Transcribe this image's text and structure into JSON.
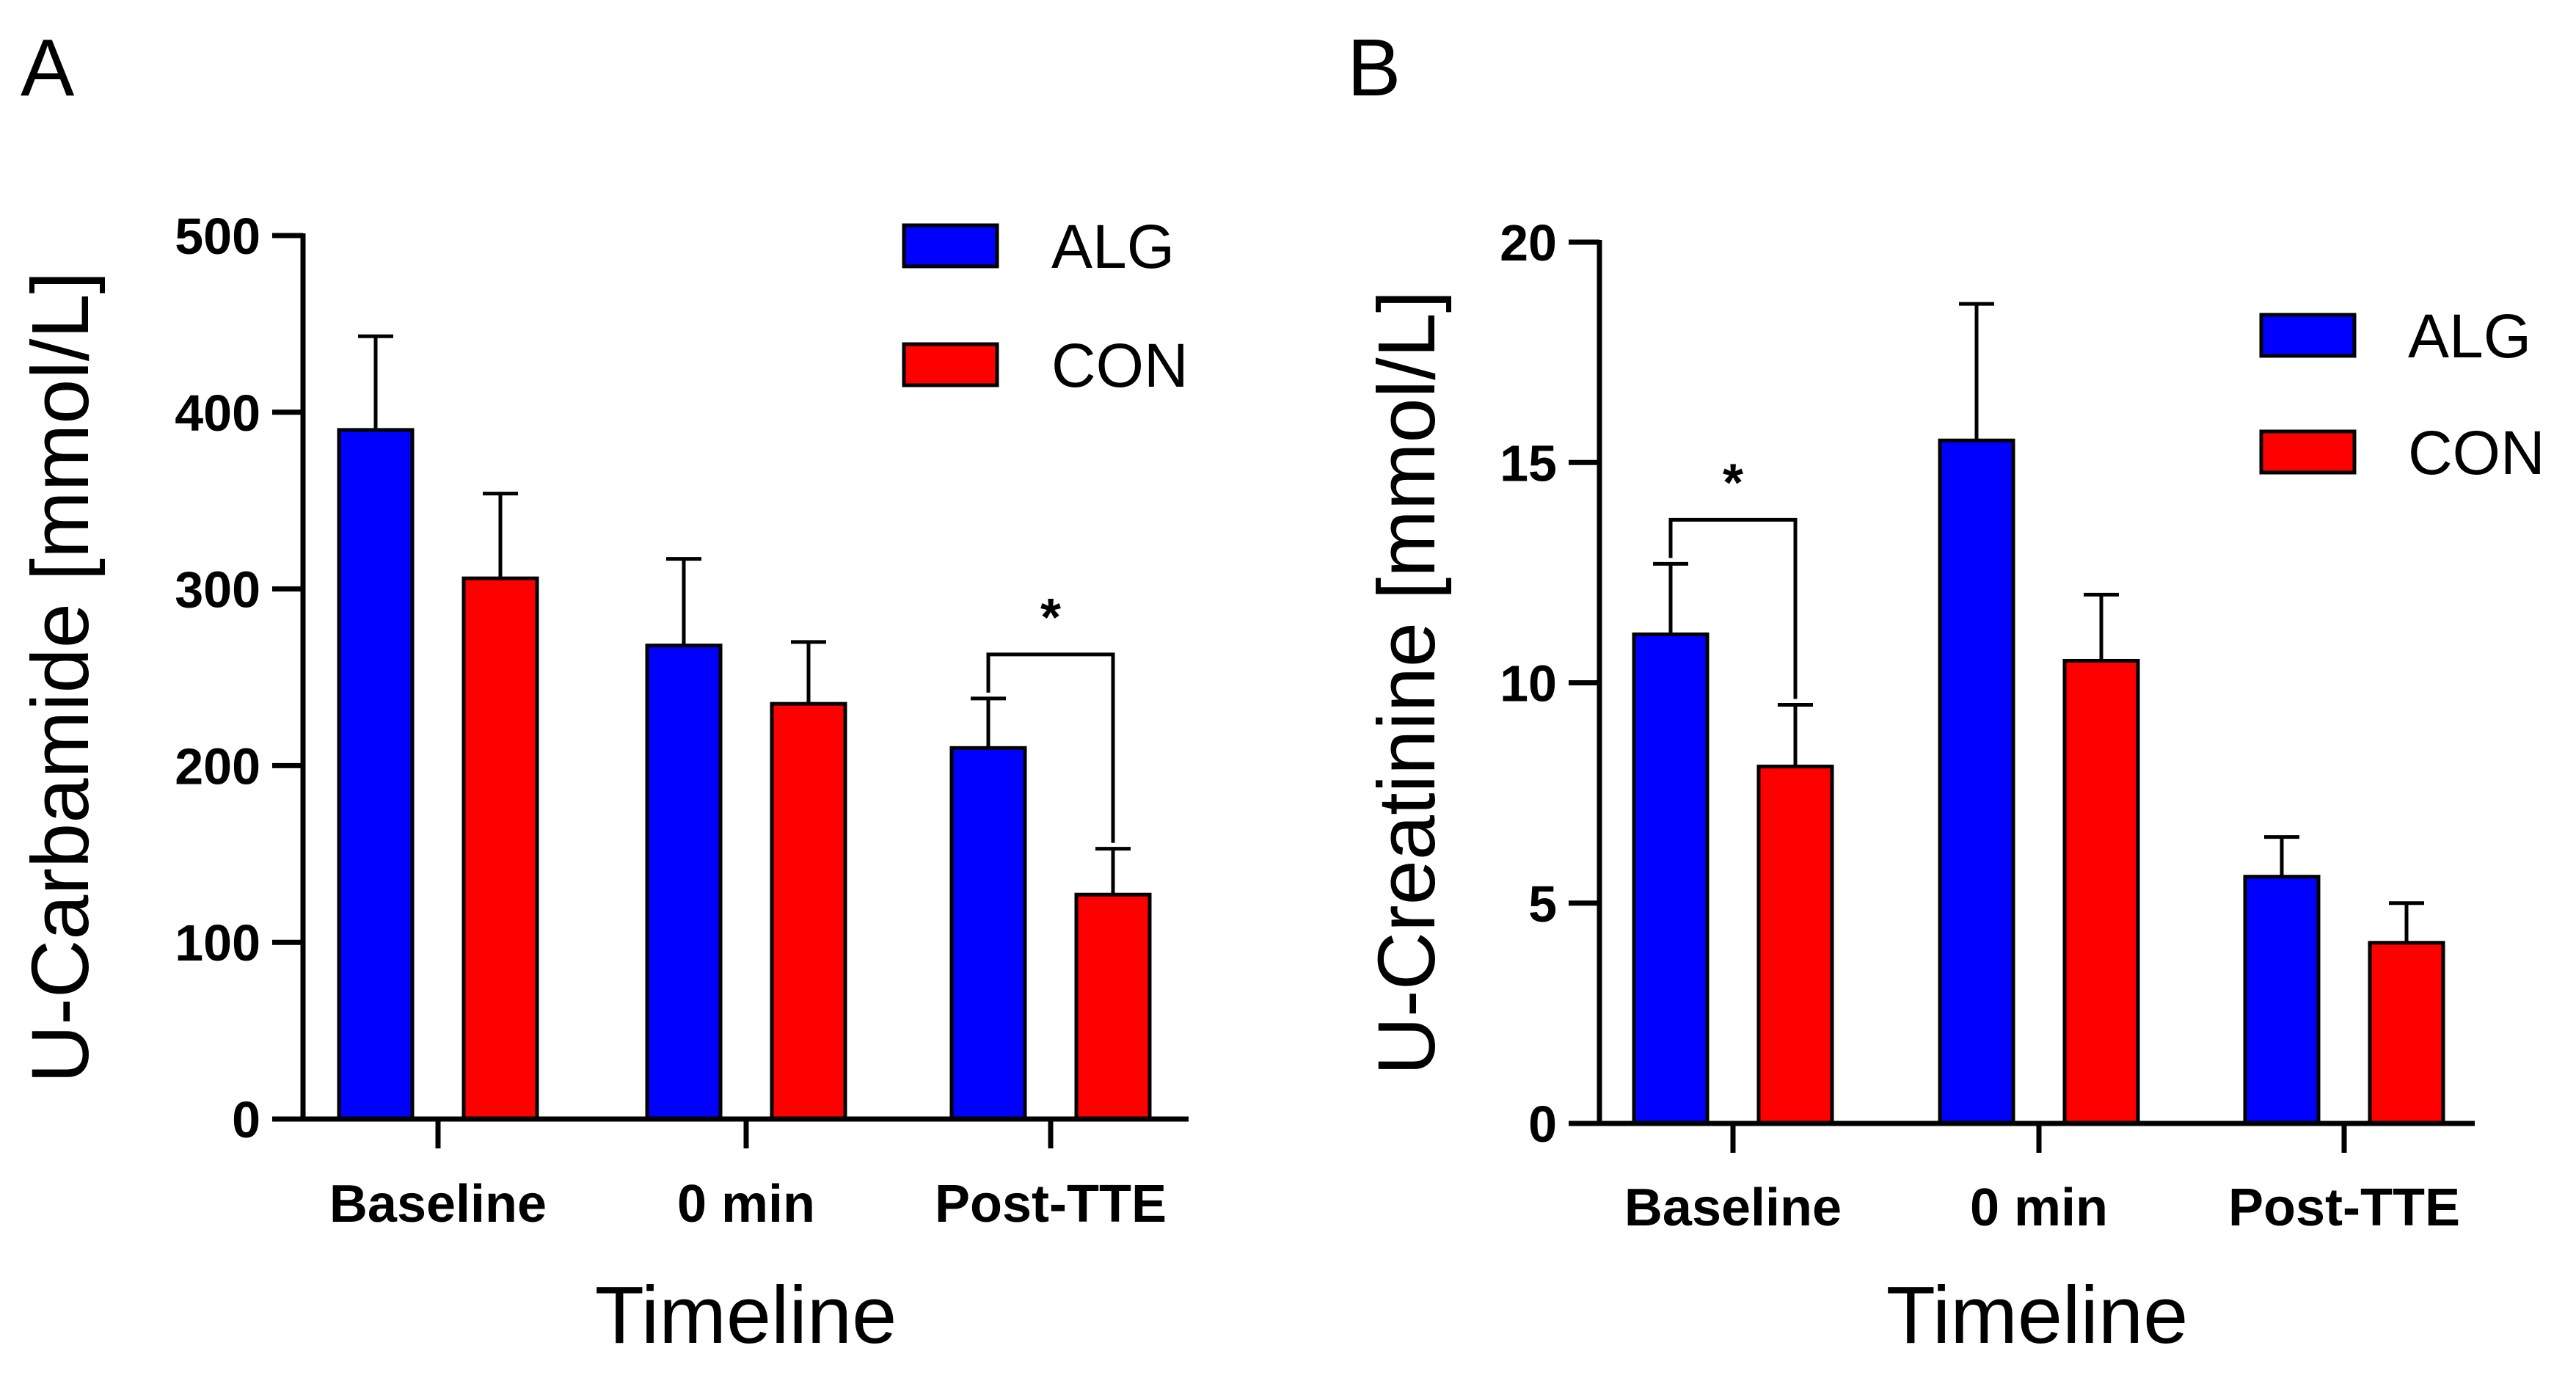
{
  "chart_data": [
    {
      "panel": "A",
      "type": "bar",
      "categories": [
        "Baseline",
        "0 min",
        "Post-TTE"
      ],
      "series": [
        {
          "name": "ALG",
          "color": "#0000ff",
          "values": [
            390,
            268,
            210
          ],
          "errors": [
            53,
            49,
            28
          ]
        },
        {
          "name": "CON",
          "color": "#ff0000",
          "values": [
            306,
            235,
            127
          ],
          "errors": [
            48,
            35,
            26
          ]
        }
      ],
      "xlabel": "Timeline",
      "ylabel": "U-Carbamide [mmol/L]",
      "ylim": [
        0,
        500
      ],
      "yticks": [
        0,
        100,
        200,
        300,
        400,
        500
      ],
      "legend": "top-right",
      "significance": [
        {
          "category_index": 2,
          "label": "*"
        }
      ]
    },
    {
      "panel": "B",
      "type": "bar",
      "categories": [
        "Baseline",
        "0 min",
        "Post-TTE"
      ],
      "series": [
        {
          "name": "ALG",
          "color": "#0000ff",
          "values": [
            11.1,
            15.5,
            5.6
          ],
          "errors": [
            1.6,
            3.1,
            0.9
          ]
        },
        {
          "name": "CON",
          "color": "#ff0000",
          "values": [
            8.1,
            10.5,
            4.1
          ],
          "errors": [
            1.4,
            1.5,
            0.9
          ]
        }
      ],
      "xlabel": "Timeline",
      "ylabel": "U-Creatinine [mmol/L]",
      "ylim": [
        0,
        20
      ],
      "yticks": [
        0,
        5,
        10,
        15,
        20
      ],
      "legend": "top-right",
      "significance": [
        {
          "category_index": 0,
          "label": "*"
        }
      ]
    }
  ]
}
